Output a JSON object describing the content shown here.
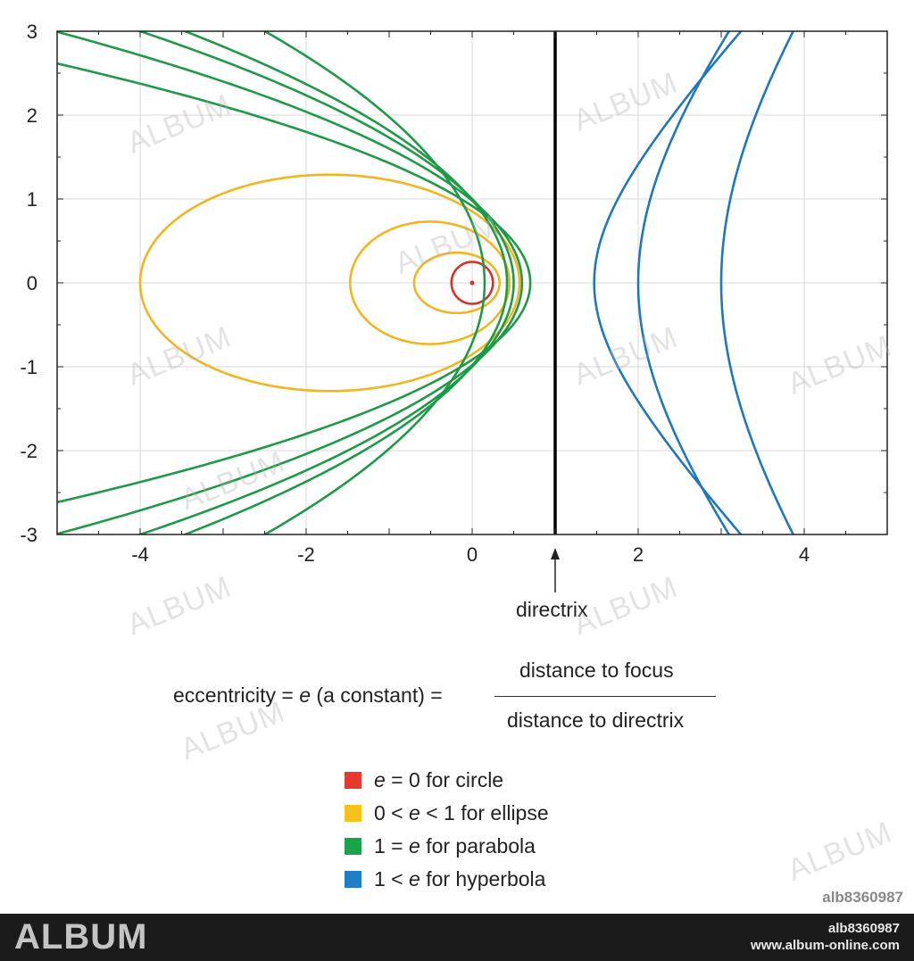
{
  "chart_data": {
    "type": "line",
    "title": "",
    "xlabel": "",
    "ylabel": "",
    "xlim": [
      -5,
      5
    ],
    "ylim": [
      -3,
      3
    ],
    "x_ticks": [
      "-4",
      "-2",
      "0",
      "2",
      "4"
    ],
    "y_ticks": [
      "3",
      "2",
      "1",
      "0",
      "-1",
      "-2",
      "-3"
    ],
    "grid": true,
    "directrix_x": 1,
    "focus": [
      0,
      0
    ],
    "colors": {
      "circle": "#d6312b",
      "ellipse": "#f2b51f",
      "parabola": "#1e9a47",
      "hyperbola": "#1f78b8",
      "directrix": "#000000",
      "grid": "#d9d9d9"
    },
    "series": [
      {
        "kind": "circle",
        "radius": 0.25
      },
      {
        "kind": "ellipse",
        "left": -0.7,
        "right": 0.33,
        "half_height": 0.36
      },
      {
        "kind": "ellipse",
        "left": -1.47,
        "right": 0.45,
        "half_height": 0.73
      },
      {
        "kind": "ellipse",
        "left": -4.0,
        "right": 0.57,
        "half_height": 1.29
      },
      {
        "kind": "parabola",
        "vertex": 0.7,
        "p": 0.3
      },
      {
        "kind": "parabola",
        "vertex": 0.6,
        "p": 0.4
      },
      {
        "kind": "parabola",
        "vertex": 0.5,
        "p": 0.5
      },
      {
        "kind": "parabola",
        "vertex": 0.42,
        "p": 0.58
      },
      {
        "kind": "parabola",
        "vertex": 0.15,
        "p": 0.85
      },
      {
        "kind": "hyperbola",
        "vertex": 1.47,
        "a": 1.5,
        "b": 1.55
      },
      {
        "kind": "hyperbola",
        "vertex": 2.0,
        "a": 2.35,
        "b": 2.8
      },
      {
        "kind": "hyperbola",
        "vertex": 3.0,
        "a": 2.6,
        "b": 3.4
      }
    ]
  },
  "labels": {
    "directrix": "directrix",
    "formula_lhs_pre": "eccentricity = ",
    "formula_lhs_e": "e",
    "formula_lhs_post": " (a constant) =",
    "formula_numerator": "distance to focus",
    "formula_denominator": "distance to directrix"
  },
  "legend": [
    {
      "color": "#e8392e",
      "pre": "",
      "e": "e",
      "post": " = 0 for circle"
    },
    {
      "color": "#f7c31a",
      "pre": "0 < ",
      "e": "e",
      "post": " < 1 for ellipse"
    },
    {
      "color": "#19a34a",
      "pre": "1 = ",
      "e": "e",
      "post": " for parabola"
    },
    {
      "color": "#1f7ec4",
      "pre": "1 < ",
      "e": "e",
      "post": " for hyperbola"
    }
  ],
  "watermark": {
    "text": "ALBUM",
    "image_id": "alb8360987",
    "footer_logo": "ALBUM",
    "footer_id": "alb8360987",
    "footer_site": "www.album-online.com"
  }
}
